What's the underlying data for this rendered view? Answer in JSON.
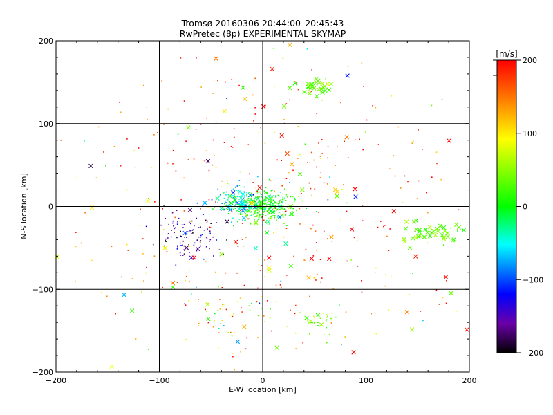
{
  "chart_data": {
    "type": "scatter",
    "title": "Tromsø 20160306 20:44:00–20:45:43",
    "subtitle": "RwPretec (8p) EXPERIMENTAL SKYMAP",
    "xlabel": "E-W location [km]",
    "ylabel": "N-S location [km]",
    "xlim": [
      -200,
      200
    ],
    "ylim": [
      -200,
      200
    ],
    "x_ticks": [
      "−200",
      "−100",
      "0",
      "100",
      "200"
    ],
    "y_ticks": [
      "−200",
      "−100",
      "0",
      "100",
      "200"
    ],
    "grid": "on",
    "colorbar": {
      "label": "[m/s]",
      "range": [
        -200,
        200
      ],
      "ticks": [
        "200",
        "100",
        "0",
        "−100",
        "−200"
      ]
    },
    "markers": [
      "dot",
      "x"
    ],
    "clusters": [
      {
        "cx": 0,
        "cy": 0,
        "sx": 14,
        "sy": 9,
        "n": 420,
        "v": 10,
        "vs": 25,
        "xfrac": 0.04
      },
      {
        "cx": -25,
        "cy": 5,
        "sx": 12,
        "sy": 10,
        "n": 90,
        "v": -60,
        "vs": 30,
        "xfrac": 0.25
      },
      {
        "cx": -70,
        "cy": -35,
        "sx": 18,
        "sy": 15,
        "n": 110,
        "v": -155,
        "vs": 30,
        "xfrac": 0.08
      },
      {
        "cx": 50,
        "cy": 145,
        "sx": 8,
        "sy": 6,
        "n": 35,
        "v": 40,
        "vs": 15,
        "xfrac": 0.7
      },
      {
        "cx": 165,
        "cy": -30,
        "sx": 18,
        "sy": 8,
        "n": 45,
        "v": 35,
        "vs": 15,
        "xfrac": 0.85
      },
      {
        "cx": 55,
        "cy": -135,
        "sx": 10,
        "sy": 10,
        "n": 30,
        "v": 40,
        "vs": 30,
        "xfrac": 0.2
      },
      {
        "cx": -30,
        "cy": -130,
        "sx": 20,
        "sy": 20,
        "n": 45,
        "v": 80,
        "vs": 80,
        "xfrac": 0.1
      },
      {
        "cx": 0,
        "cy": 0,
        "sx": 95,
        "sy": 95,
        "n": 420,
        "v": 160,
        "vs": 70,
        "xfrac": 0.12
      },
      {
        "cx": 0,
        "cy": 0,
        "sx": 100,
        "sy": 100,
        "n": 55,
        "v": 5,
        "vs": 90,
        "xfrac": 0.55
      }
    ]
  }
}
